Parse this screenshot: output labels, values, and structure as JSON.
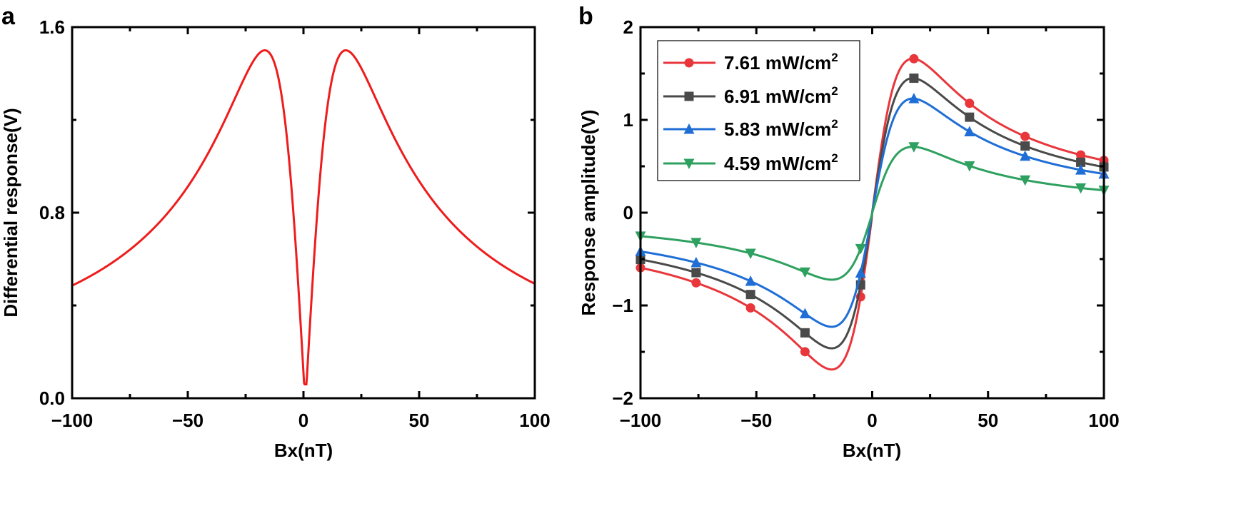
{
  "chart_data": [
    {
      "panel": "a",
      "type": "line",
      "title": "",
      "xlabel": "Bx(nT)",
      "ylabel": "Differential response(V)",
      "xlim": [
        -100,
        100
      ],
      "ylim": [
        0.0,
        1.6
      ],
      "xticks": [
        -100,
        -50,
        0,
        50,
        100
      ],
      "xtick_labels": [
        "−100",
        "−50",
        "0",
        "50",
        "100"
      ],
      "yticks": [
        0.0,
        0.8,
        1.6
      ],
      "ytick_labels": [
        "0.0",
        "0.8",
        "1.6"
      ],
      "series": [
        {
          "name": "Differential response",
          "color": "#ee1c1c",
          "model": {
            "amplitude": 1.5,
            "peak_bx": 17.5,
            "center": 0.8,
            "baseline": -0.03
          }
        }
      ]
    },
    {
      "panel": "b",
      "type": "line",
      "title": "",
      "xlabel": "Bx(nT)",
      "ylabel": "Response amplitude(V)",
      "xlim": [
        -100,
        100
      ],
      "ylim": [
        -2,
        2
      ],
      "xticks": [
        -100,
        -50,
        0,
        50,
        100
      ],
      "xtick_labels": [
        "−100",
        "−50",
        "0",
        "50",
        "100"
      ],
      "yticks": [
        -2,
        -1,
        0,
        1,
        2
      ],
      "ytick_labels": [
        "−2",
        "−1",
        "0",
        "1",
        "2"
      ],
      "legend_position": "top-left",
      "marker_x": [
        -100,
        -76,
        -52.5,
        -29,
        -5,
        18,
        42,
        66,
        90,
        100
      ],
      "series": [
        {
          "name": "7.61 mW/cm",
          "sup": "2",
          "color": "#e8363b",
          "marker": "circle",
          "peak": 1.66,
          "peak_bx": 17.5,
          "asym": -0.05
        },
        {
          "name": "6.91 mW/cm",
          "sup": "2",
          "color": "#4a4a4a",
          "marker": "square",
          "peak": 1.45,
          "peak_bx": 17.5,
          "asym": -0.02
        },
        {
          "name": "5.83 mW/cm",
          "sup": "2",
          "color": "#1f6ed6",
          "marker": "triangle-up",
          "peak": 1.23,
          "peak_bx": 17.5,
          "asym": 0.0
        },
        {
          "name": "4.59 mW/cm",
          "sup": "2",
          "color": "#2ea05f",
          "marker": "triangle-down",
          "peak": 0.71,
          "peak_bx": 17.5,
          "asym": -0.02
        }
      ]
    }
  ]
}
